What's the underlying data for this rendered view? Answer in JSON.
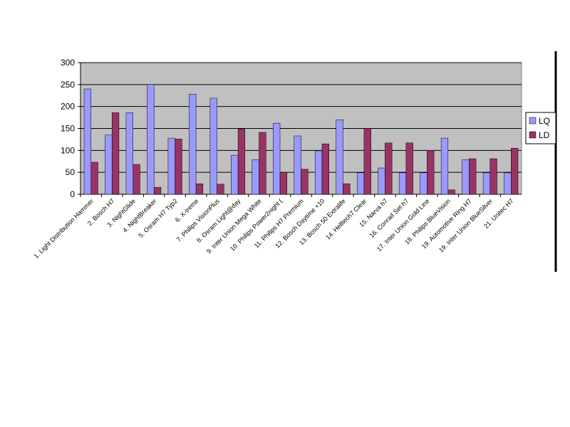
{
  "chart_data": {
    "type": "bar",
    "categories": [
      "1. Light Distribution Hammer",
      "2. Bosch H7",
      "3. NightGlide",
      "4. NightBreaker",
      "5. Osram H7 Typ2",
      "6. X-treme",
      "7. Philips VisionPlus",
      "8. Osram Light@day",
      "9. Inter Union Mega White",
      "10. Philips Power2night (",
      "11. Philips H7 Premium",
      "12. Bosch Daytime +10",
      "13. Bosch 50 Extralife",
      "14. Helltech7 Clear",
      "15. Narva h7",
      "16. Conrad Set h7",
      "17. Inter Union Gold Line",
      "18. Philips BlueVision",
      "19. Automotive Ring H7",
      "19. Inter Union BlueSilver",
      "21. Unitec H7"
    ],
    "series": [
      {
        "name": "LQ",
        "color": "#9999ff",
        "values": [
          240,
          135,
          186,
          250,
          128,
          228,
          219,
          89,
          79,
          162,
          133,
          99,
          170,
          49,
          60,
          49,
          49,
          128,
          79,
          49,
          49
        ]
      },
      {
        "name": "LD",
        "color": "#993366",
        "values": [
          73,
          186,
          68,
          16,
          126,
          24,
          23,
          149,
          141,
          50,
          57,
          115,
          24,
          150,
          117,
          117,
          100,
          10,
          81,
          81,
          105
        ]
      }
    ],
    "ylim": [
      0,
      300
    ],
    "yticks": [
      0,
      50,
      100,
      150,
      200,
      250,
      300
    ],
    "grid": true,
    "legend": "right"
  }
}
